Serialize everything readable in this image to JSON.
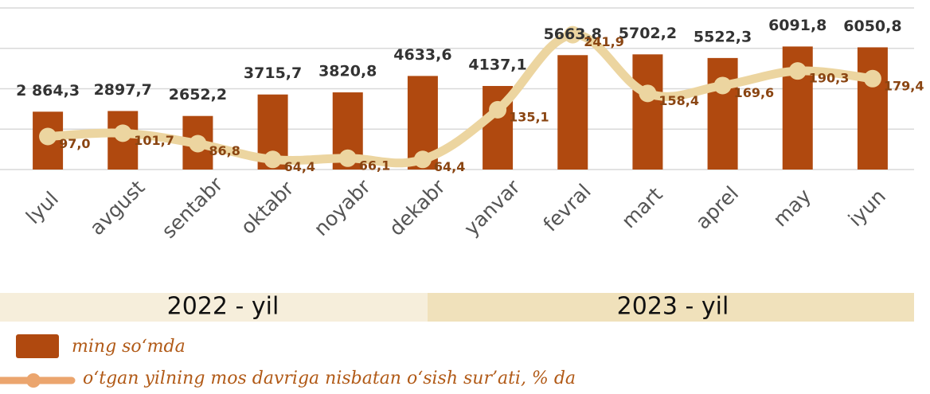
{
  "chart_data": {
    "type": "bar_line",
    "categories": [
      "lyul",
      "avgust",
      "sentabr",
      "oktabr",
      "noyabr",
      "dekabr",
      "yanvar",
      "fevral",
      "mart",
      "aprel",
      "may",
      "iyun"
    ],
    "series": [
      {
        "name": "ming so‘mda",
        "type": "bar",
        "color": "#b0490f",
        "values": [
          2864.3,
          2897.7,
          2652.2,
          3715.7,
          3820.8,
          4633.6,
          4137.1,
          5663.8,
          5702.2,
          5522.3,
          6091.8,
          6050.8
        ],
        "value_labels": [
          "2 864,3",
          "2897,7",
          "2652,2",
          "3715,7",
          "3820,8",
          "4633,6",
          "4137,1",
          "5663,8",
          "5702,2",
          "5522,3",
          "6091,8",
          "6050,8"
        ]
      },
      {
        "name": "o‘tgan yilning mos davriga nisbatan o‘sish sur’ati, % da",
        "type": "line",
        "axis": "y2",
        "color": "#ecd5a0",
        "values": [
          97.0,
          101.7,
          86.8,
          64.4,
          66.1,
          64.4,
          135.1,
          241.9,
          158.4,
          169.6,
          190.3,
          179.4
        ],
        "value_labels": [
          "97,0",
          "101,7",
          "86,8",
          "64,4",
          "66,1",
          "64,4",
          "135,1",
          "241,9",
          "158,4",
          "169,6",
          "190,3",
          "179,4"
        ]
      }
    ],
    "ylim": [
      0,
      8000
    ],
    "yticks": [
      0,
      2000,
      4000,
      6000,
      8000
    ],
    "grid": true,
    "y2lim": [
      50,
      280
    ],
    "periods": [
      "2022 - yil",
      "2023 - yil"
    ]
  }
}
